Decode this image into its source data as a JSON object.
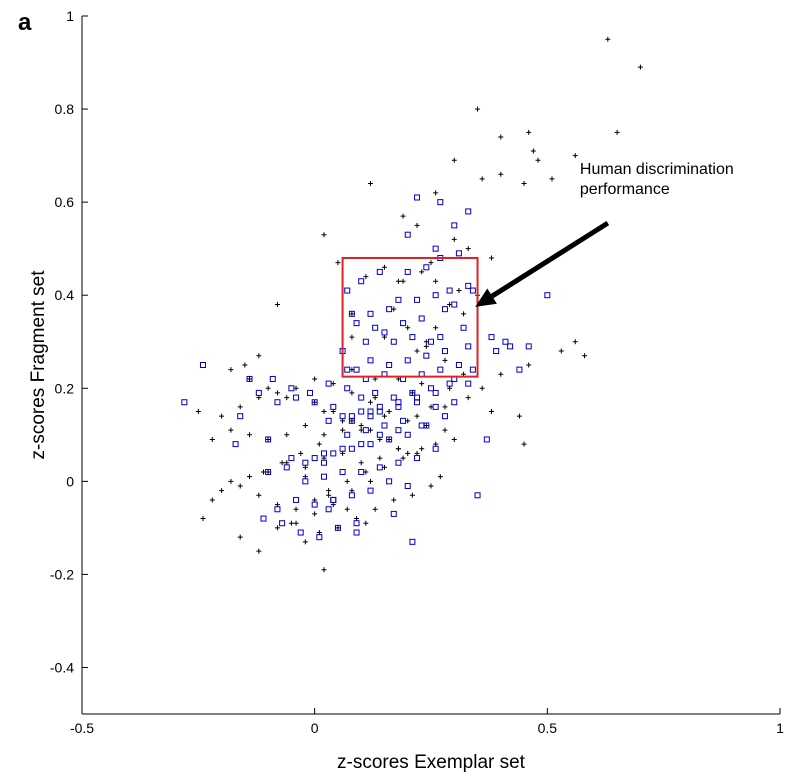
{
  "chart_data": {
    "type": "scatter",
    "panel_label": "a",
    "xlabel": "z-scores Exemplar set",
    "ylabel": "z-scores Fragment set",
    "xlim": [
      -0.5,
      1
    ],
    "ylim": [
      -0.5,
      1
    ],
    "x_ticks": [
      -0.5,
      0,
      0.5,
      1
    ],
    "x_tick_labels": [
      "-0.5",
      "0",
      "0.5",
      "1"
    ],
    "y_ticks": [
      -0.4,
      -0.2,
      0,
      0.2,
      0.4,
      0.6,
      0.8,
      1
    ],
    "y_tick_labels": [
      "-0.4",
      "-0.2",
      "0",
      "0.2",
      "0.4",
      "0.6",
      "0.8",
      "1"
    ],
    "grid": false,
    "colors": {
      "plus_series": "#000000",
      "square_series": "#0000cc",
      "region_box": "#dd2222",
      "arrow": "#000000"
    },
    "annotation": {
      "lines": [
        "Human discrimination",
        "performance"
      ],
      "text_anchor": [
        0.57,
        0.63
      ],
      "arrow_from": [
        0.63,
        0.555
      ],
      "arrow_to": [
        0.345,
        0.375
      ]
    },
    "region": {
      "x": [
        0.06,
        0.35
      ],
      "y": [
        0.225,
        0.48
      ]
    },
    "series": [
      {
        "marker": "plus",
        "x": [
          0.63,
          0.7,
          0.35,
          0.4,
          0.46,
          0.47,
          0.48,
          0.65,
          0.56,
          0.51,
          0.3,
          0.4,
          0.36,
          0.12,
          0.45,
          0.26,
          0.19,
          0.22,
          0.3,
          0.02,
          0.25,
          0.05,
          0.18,
          0.26,
          0.08,
          0.17,
          0.32,
          0.08,
          0.2,
          0.24,
          0.15,
          0.22,
          0.28,
          -0.08,
          -0.12,
          -0.15,
          0.08,
          0.13,
          0.18,
          0.23,
          0.29,
          0.32,
          0.21,
          0.13,
          0.16,
          0.25,
          0.38,
          0.44,
          0.58,
          0.56,
          0.53,
          0.46,
          0.4,
          0.36,
          0.33,
          0.28,
          0.22,
          0.15,
          0.1,
          0.06,
          0.02,
          -0.02,
          -0.06,
          -0.1,
          -0.14,
          -0.18,
          -0.22,
          -0.25,
          -0.2,
          -0.16,
          -0.12,
          -0.08,
          -0.04,
          0.0,
          0.04,
          0.08,
          0.12,
          0.16,
          0.2,
          0.24,
          0.28,
          0.3,
          0.26,
          0.22,
          0.18,
          0.14,
          0.1,
          0.06,
          0.02,
          -0.02,
          -0.06,
          -0.1,
          -0.14,
          -0.18,
          -0.22,
          -0.24,
          -0.2,
          -0.16,
          -0.12,
          -0.08,
          -0.04,
          0.0,
          0.03,
          0.07,
          0.11,
          0.15,
          0.19,
          0.23,
          0.01,
          -0.03,
          -0.07,
          -0.11,
          -0.05,
          0.01,
          0.05,
          0.09,
          0.13,
          0.17,
          0.21,
          0.25,
          0.27,
          0.12,
          0.08,
          0.04,
          0.0,
          -0.04,
          -0.08,
          -0.12,
          -0.16,
          -0.02,
          0.02,
          0.06,
          0.1,
          0.14,
          0.18,
          0.2,
          0.16,
          0.12,
          0.08,
          0.04,
          0.0,
          -0.06,
          -0.1,
          -0.14,
          -0.18,
          -0.02,
          0.03,
          0.07,
          0.11,
          0.19,
          0.23,
          0.31,
          0.35,
          0.29,
          0.26,
          0.24,
          0.11,
          0.15,
          0.33,
          0.38,
          0.45,
          0.02
        ],
        "y": [
          0.95,
          0.89,
          0.8,
          0.74,
          0.75,
          0.71,
          0.69,
          0.75,
          0.7,
          0.65,
          0.69,
          0.66,
          0.65,
          0.64,
          0.64,
          0.62,
          0.57,
          0.55,
          0.52,
          0.53,
          0.47,
          0.47,
          0.43,
          0.43,
          0.36,
          0.37,
          0.36,
          0.31,
          0.33,
          0.29,
          0.31,
          0.28,
          0.26,
          0.38,
          0.27,
          0.25,
          0.24,
          0.22,
          0.22,
          0.21,
          0.2,
          0.23,
          0.19,
          0.18,
          0.15,
          0.16,
          0.15,
          0.14,
          0.27,
          0.3,
          0.28,
          0.25,
          0.23,
          0.2,
          0.18,
          0.16,
          0.14,
          0.14,
          0.12,
          0.11,
          0.1,
          0.12,
          0.1,
          0.09,
          0.1,
          0.11,
          0.09,
          0.15,
          0.14,
          0.16,
          0.18,
          0.19,
          0.2,
          0.22,
          0.21,
          0.19,
          0.17,
          0.15,
          0.13,
          0.12,
          0.11,
          0.09,
          0.08,
          0.06,
          0.07,
          0.05,
          0.04,
          0.06,
          0.05,
          0.03,
          0.04,
          0.02,
          0.01,
          0.0,
          -0.04,
          -0.08,
          -0.02,
          -0.01,
          -0.03,
          -0.05,
          -0.06,
          -0.04,
          -0.02,
          0.0,
          0.02,
          0.03,
          0.05,
          0.07,
          0.08,
          0.06,
          0.04,
          0.02,
          -0.09,
          -0.11,
          -0.1,
          -0.08,
          -0.06,
          -0.04,
          -0.03,
          -0.01,
          0.01,
          0.0,
          -0.02,
          -0.05,
          -0.07,
          -0.09,
          -0.1,
          -0.15,
          -0.12,
          -0.13,
          0.15,
          0.13,
          0.11,
          0.09,
          0.07,
          0.06,
          0.09,
          0.11,
          0.13,
          0.15,
          0.17,
          0.18,
          0.2,
          0.22,
          0.24,
          0.01,
          -0.03,
          -0.06,
          -0.09,
          0.43,
          0.45,
          0.41,
          0.4,
          0.38,
          0.33,
          0.3,
          0.44,
          0.46,
          0.5,
          0.48,
          0.08,
          -0.19
        ],
        "name": ""
      },
      {
        "marker": "square",
        "x": [
          0.31,
          0.27,
          0.24,
          0.2,
          0.14,
          0.1,
          0.07,
          0.33,
          0.29,
          0.26,
          0.22,
          0.18,
          0.16,
          0.12,
          0.09,
          0.34,
          0.3,
          0.28,
          0.23,
          0.19,
          0.15,
          0.13,
          0.08,
          0.32,
          0.27,
          0.25,
          0.21,
          0.17,
          0.11,
          0.06,
          0.33,
          0.28,
          0.24,
          0.2,
          0.16,
          0.12,
          0.09,
          0.31,
          0.27,
          0.23,
          0.19,
          0.15,
          0.11,
          0.07,
          0.33,
          0.29,
          0.25,
          0.21,
          0.17,
          0.13,
          0.1,
          0.3,
          0.26,
          0.22,
          0.18,
          0.14,
          0.12,
          0.08,
          0.34,
          0.3,
          0.26,
          0.22,
          0.18,
          0.14,
          0.1,
          0.06,
          0.23,
          0.19,
          0.15,
          0.11,
          0.07,
          0.03,
          0.28,
          0.24,
          0.2,
          0.16,
          0.12,
          0.08,
          0.04,
          0.0,
          0.26,
          0.22,
          0.18,
          0.14,
          0.1,
          0.06,
          0.02,
          -0.02,
          0.2,
          0.16,
          0.12,
          0.08,
          0.04,
          0.0,
          -0.04,
          -0.08,
          0.18,
          0.14,
          0.1,
          0.06,
          0.02,
          -0.02,
          -0.06,
          -0.1,
          0.12,
          0.08,
          0.04,
          0.0,
          -0.04,
          -0.08,
          -0.12,
          -0.16,
          0.09,
          0.05,
          0.01,
          -0.03,
          -0.07,
          -0.11,
          0.07,
          0.03,
          -0.01,
          -0.05,
          -0.09,
          -0.28,
          -0.24,
          -0.17,
          -0.14,
          -0.1,
          -0.05,
          0.03,
          0.02,
          0.04,
          0.09,
          0.17,
          0.21,
          0.35,
          0.37,
          0.39,
          0.42,
          0.41,
          0.38,
          0.44,
          0.46,
          0.5,
          0.33,
          0.27,
          0.22,
          0.2,
          0.26,
          0.3
        ],
        "y": [
          0.49,
          0.48,
          0.46,
          0.45,
          0.45,
          0.43,
          0.41,
          0.42,
          0.41,
          0.4,
          0.39,
          0.39,
          0.37,
          0.36,
          0.34,
          0.41,
          0.38,
          0.37,
          0.35,
          0.34,
          0.32,
          0.33,
          0.36,
          0.33,
          0.31,
          0.3,
          0.31,
          0.3,
          0.3,
          0.28,
          0.29,
          0.28,
          0.27,
          0.26,
          0.25,
          0.26,
          0.24,
          0.25,
          0.24,
          0.23,
          0.22,
          0.23,
          0.22,
          0.2,
          0.21,
          0.21,
          0.2,
          0.19,
          0.18,
          0.19,
          0.18,
          0.17,
          0.16,
          0.17,
          0.16,
          0.15,
          0.14,
          0.13,
          0.24,
          0.22,
          0.19,
          0.18,
          0.17,
          0.16,
          0.15,
          0.14,
          0.12,
          0.13,
          0.12,
          0.11,
          0.1,
          0.13,
          0.14,
          0.12,
          0.1,
          0.09,
          0.08,
          0.07,
          0.06,
          0.05,
          0.07,
          0.05,
          0.04,
          0.03,
          0.02,
          0.02,
          0.01,
          0.0,
          -0.01,
          0.0,
          -0.02,
          -0.03,
          -0.04,
          -0.05,
          -0.04,
          -0.06,
          0.11,
          0.1,
          0.08,
          0.07,
          0.06,
          0.04,
          0.03,
          0.02,
          0.15,
          0.14,
          0.16,
          0.17,
          0.18,
          0.17,
          0.19,
          0.14,
          -0.09,
          -0.1,
          -0.12,
          -0.11,
          -0.09,
          -0.08,
          0.24,
          0.21,
          0.19,
          0.2,
          0.22,
          0.17,
          0.25,
          0.08,
          0.22,
          0.09,
          0.05,
          -0.06,
          0.04,
          -0.04,
          -0.11,
          -0.07,
          -0.13,
          -0.03,
          0.09,
          0.28,
          0.29,
          0.3,
          0.31,
          0.24,
          0.29,
          0.4,
          0.58,
          0.6,
          0.61,
          0.53,
          0.5,
          0.55
        ]
      }
    ]
  }
}
